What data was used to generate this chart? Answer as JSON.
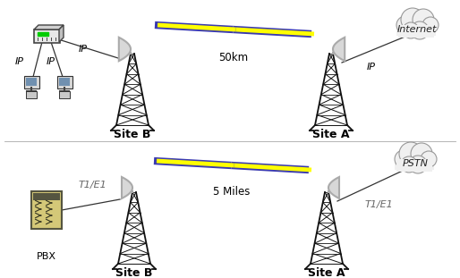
{
  "bg_color": "#ffffff",
  "top_scene": {
    "site_b_label": "Site B",
    "site_a_label": "Site A",
    "distance_label": "50km",
    "link_label_left": "IP",
    "link_label_right": "IP",
    "ip_label1": "IP",
    "ip_label2": "IP",
    "right_cloud_label": "Internet"
  },
  "bottom_scene": {
    "site_b_label": "Site B",
    "site_a_label": "Site A",
    "distance_label": "5 Miles",
    "link_label_left": "T1/E1",
    "link_label_right": "T1/E1",
    "left_device_label": "PBX",
    "right_cloud_label": "PSTN"
  },
  "tower_color": "#111111",
  "dish_color": "#aaaaaa",
  "bolt_yellow": "#ffff00",
  "bolt_blue": "#3a3ab0",
  "bolt_line_color": "#3a3ab0",
  "cloud_color": "#f0f0f0",
  "cloud_edge": "#999999",
  "text_color": "#000000",
  "label_fontsize": 8,
  "site_label_fontsize": 9,
  "distance_fontsize": 8.5
}
